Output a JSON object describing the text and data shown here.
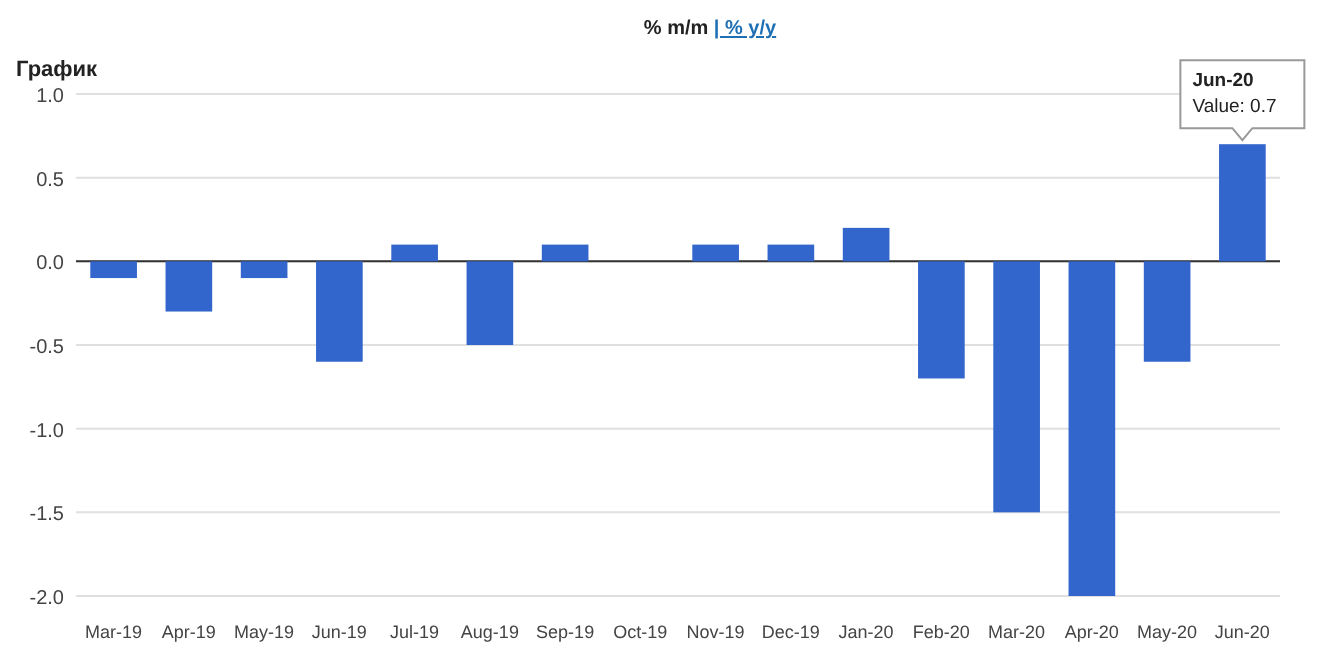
{
  "chart_data": {
    "type": "bar",
    "title": "График",
    "subtitle": "% m/m | % y/y",
    "categories": [
      "Mar-19",
      "Apr-19",
      "May-19",
      "Jun-19",
      "Jul-19",
      "Aug-19",
      "Sep-19",
      "Oct-19",
      "Nov-19",
      "Dec-19",
      "Jan-20",
      "Feb-20",
      "Mar-20",
      "Apr-20",
      "May-20",
      "Jun-20"
    ],
    "values": [
      -0.1,
      -0.3,
      -0.1,
      -0.6,
      0.1,
      -0.5,
      0.1,
      0,
      0.1,
      0.1,
      0.2,
      -0.7,
      -1.5,
      -2.0,
      -0.6,
      0.7
    ],
    "color": "#3366cc",
    "ylim": [
      -2.0,
      1.0
    ],
    "yticks": [
      {
        "value": -2,
        "label": "-2.0"
      },
      {
        "value": -1.5,
        "label": "-1.5"
      },
      {
        "value": -1,
        "label": "-1.0"
      },
      {
        "value": -0.5,
        "label": "-0.5"
      },
      {
        "value": 0,
        "label": "0.0"
      },
      {
        "value": 0.5,
        "label": "0.5"
      },
      {
        "value": 1,
        "label": "1.0"
      }
    ],
    "grid": "y",
    "annotations": [
      {
        "text": "Jun-20\nValue: 0.7",
        "x": "Jun-20",
        "y": 0.7
      }
    ]
  }
}
